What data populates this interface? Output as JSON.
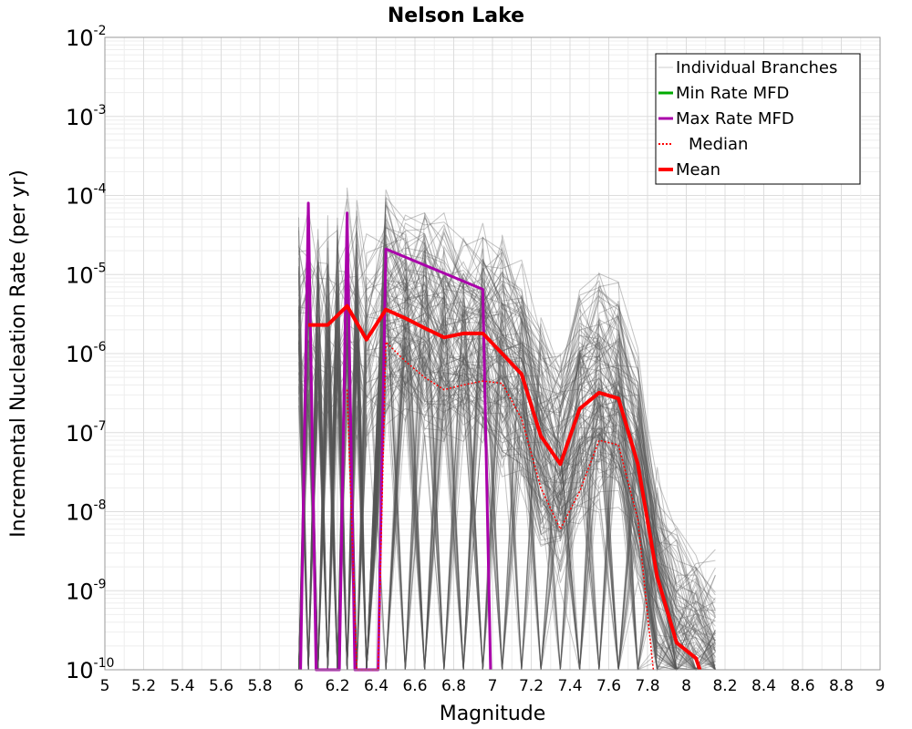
{
  "chart_data": {
    "type": "line",
    "title": "Nelson Lake",
    "xlabel": "Magnitude",
    "ylabel": "Incremental Nucleation Rate (per yr)",
    "xlim": [
      5,
      9
    ],
    "ylim": [
      1e-10,
      0.01
    ],
    "yscale": "log",
    "grid": true,
    "legend_position": "top-right",
    "x_ticks": [
      "5",
      "5.2",
      "5.4",
      "5.6",
      "5.8",
      "6",
      "6.2",
      "6.4",
      "6.6",
      "6.8",
      "7",
      "7.2",
      "7.4",
      "7.6",
      "7.8",
      "8",
      "8.2",
      "8.4",
      "8.6",
      "8.8",
      "9"
    ],
    "y_ticks": [
      {
        "base": "10",
        "exp": "-10"
      },
      {
        "base": "10",
        "exp": "-9"
      },
      {
        "base": "10",
        "exp": "-8"
      },
      {
        "base": "10",
        "exp": "-7"
      },
      {
        "base": "10",
        "exp": "-6"
      },
      {
        "base": "10",
        "exp": "-5"
      },
      {
        "base": "10",
        "exp": "-4"
      },
      {
        "base": "10",
        "exp": "-3"
      },
      {
        "base": "10",
        "exp": "-2"
      }
    ],
    "legend": [
      {
        "label": "Individual Branches",
        "color": "#cccccc",
        "style": "thin"
      },
      {
        "label": "Min Rate MFD",
        "color": "#00aa00",
        "style": "solid"
      },
      {
        "label": "Max Rate MFD",
        "color": "#aa00aa",
        "style": "solid"
      },
      {
        "label": "Median",
        "color": "#ff0000",
        "style": "dotted"
      },
      {
        "label": "Mean",
        "color": "#ff0000",
        "style": "thick"
      }
    ],
    "series": [
      {
        "name": "Max Rate MFD",
        "color": "#aa00aa",
        "x": [
          6.01,
          6.05,
          6.09,
          6.21,
          6.25,
          6.29,
          6.41,
          6.45,
          6.95,
          6.99
        ],
        "y": [
          1e-10,
          8e-05,
          1e-10,
          1e-10,
          6e-05,
          1e-10,
          1e-10,
          2.1e-05,
          6.5e-06,
          1e-10
        ]
      },
      {
        "name": "Mean",
        "color": "#ff0000",
        "x": [
          6.05,
          6.15,
          6.25,
          6.35,
          6.45,
          6.55,
          6.65,
          6.75,
          6.85,
          6.95,
          7.05,
          7.15,
          7.25,
          7.35,
          7.45,
          7.55,
          7.65,
          7.75,
          7.85,
          7.95,
          8.05,
          8.07
        ],
        "y": [
          2.3e-06,
          2.3e-06,
          4e-06,
          1.5e-06,
          3.6e-06,
          2.8e-06,
          2.1e-06,
          1.6e-06,
          1.8e-06,
          1.8e-06,
          1e-06,
          5.5e-07,
          9e-08,
          4e-08,
          2e-07,
          3.2e-07,
          2.7e-07,
          4e-08,
          1.5e-09,
          2.2e-10,
          1.4e-10,
          1e-10
        ]
      },
      {
        "name": "Median",
        "color": "#ff0000",
        "x": [
          6.25,
          6.3,
          6.41,
          6.45,
          6.55,
          6.65,
          6.75,
          6.85,
          6.95,
          7.05,
          7.15,
          7.25,
          7.35,
          7.45,
          7.55,
          7.65,
          7.75,
          7.8,
          7.83
        ],
        "y": [
          3.5e-07,
          1e-10,
          1e-10,
          1.4e-06,
          8e-07,
          5e-07,
          3.5e-07,
          4e-07,
          4.5e-07,
          4.2e-07,
          1.5e-07,
          2e-08,
          6e-09,
          1.8e-08,
          8e-08,
          7e-08,
          8e-09,
          5e-10,
          1e-10
        ]
      }
    ]
  }
}
